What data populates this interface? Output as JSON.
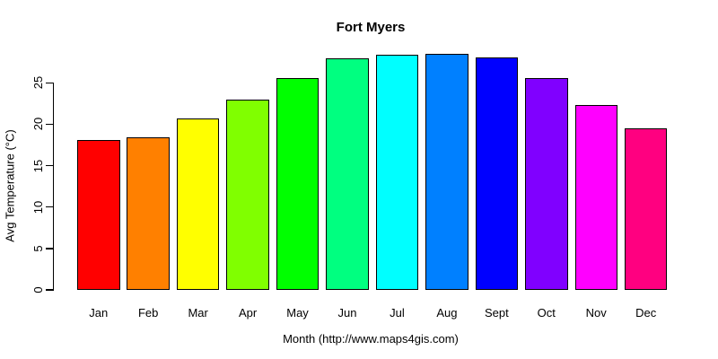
{
  "chart_data": {
    "type": "bar",
    "title": "Fort Myers",
    "xlabel": "Month (http://www.maps4gis.com)",
    "ylabel": "Avg Temperature (°C)",
    "categories": [
      "Jan",
      "Feb",
      "Mar",
      "Apr",
      "May",
      "Jun",
      "Jul",
      "Aug",
      "Sept",
      "Oct",
      "Nov",
      "Dec"
    ],
    "values": [
      18.1,
      18.4,
      20.7,
      23.0,
      25.6,
      27.9,
      28.4,
      28.5,
      28.1,
      25.6,
      22.3,
      19.5
    ],
    "bar_colors": [
      "#FF0000",
      "#FF8000",
      "#FFFF00",
      "#80FF00",
      "#00FF00",
      "#00FF80",
      "#00FFFF",
      "#0080FF",
      "#0000FF",
      "#8000FF",
      "#FF00FF",
      "#FF0080"
    ],
    "bar_border_color": "#000000",
    "yticks": [
      0,
      5,
      10,
      15,
      20,
      25
    ],
    "ylim": [
      0,
      29
    ],
    "grid": false,
    "legend": "none",
    "background": "#FFFFFF",
    "text_color": "#000000"
  }
}
